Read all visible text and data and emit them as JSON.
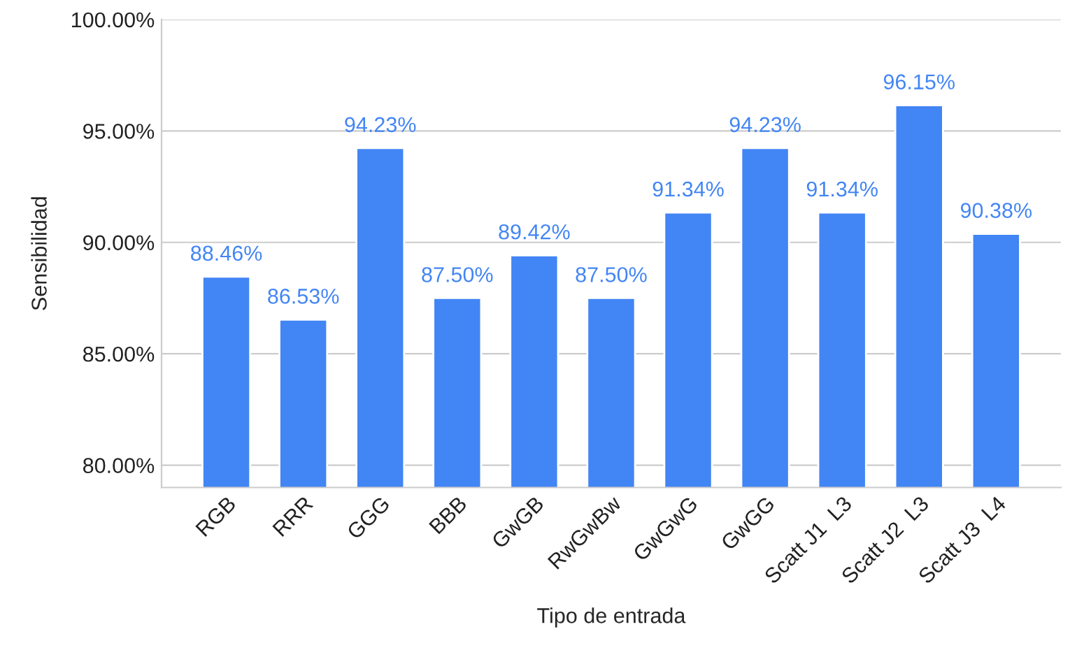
{
  "chart_data": {
    "type": "bar",
    "xlabel": "Tipo de entrada",
    "ylabel": "Sensibilidad",
    "categories": [
      "RGB",
      "RRR",
      "GGG",
      "BBB",
      "GwGB",
      "RwGwBw",
      "GwGwG",
      "GwGG",
      "Scatt J1  L3",
      "Scatt J2  L3",
      "Scatt J3  L4"
    ],
    "values": [
      88.46,
      86.53,
      94.23,
      87.5,
      89.42,
      87.5,
      91.34,
      94.23,
      91.34,
      96.15,
      90.38
    ],
    "value_labels": [
      "88.46%",
      "86.53%",
      "94.23%",
      "87.50%",
      "89.42%",
      "87.50%",
      "91.34%",
      "94.23%",
      "91.34%",
      "96.15%",
      "90.38%"
    ],
    "color": "#4285f4",
    "ylim": [
      79,
      100
    ],
    "yticks": [
      {
        "value": 80,
        "label": "80.00%"
      },
      {
        "value": 85,
        "label": "85.00%"
      },
      {
        "value": 90,
        "label": "90.00%"
      },
      {
        "value": 95,
        "label": "95.00%"
      },
      {
        "value": 100,
        "label": "100.00%"
      }
    ],
    "grid": "y"
  }
}
